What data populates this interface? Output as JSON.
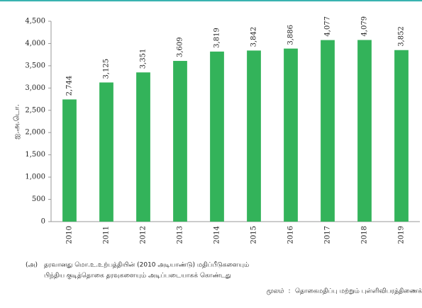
{
  "chart_data": {
    "type": "bar",
    "y_axis_label": "ஐ.அ.டொ.",
    "categories": [
      "2010",
      "2011",
      "2012",
      "2013",
      "2014",
      "2015",
      "2016",
      "2017",
      "2018",
      "2019"
    ],
    "values": [
      2744,
      3125,
      3351,
      3609,
      3819,
      3842,
      3886,
      4077,
      4079,
      3852
    ],
    "value_labels": [
      "2,744",
      "3,125",
      "3,351",
      "3,609",
      "3,819",
      "3,842",
      "3,886",
      "4,077",
      "4,079",
      "3,852"
    ],
    "color": "#33b35a",
    "ylim": [
      0,
      4500
    ],
    "yticks": [
      0,
      500,
      {
        "value": 1000,
        "label": "1,000"
      },
      {
        "value": 1500,
        "label": "1,500"
      },
      {
        "value": 2000,
        "label": "2,000"
      },
      {
        "value": 2500,
        "label": "2,500"
      },
      {
        "value": 3000,
        "label": "3,000"
      },
      {
        "value": 3500,
        "label": "3,500"
      },
      {
        "value": 4000,
        "label": "4,000"
      },
      {
        "value": 4500,
        "label": "4,500"
      }
    ],
    "grid": false,
    "note_marker": "(அ)",
    "note_lines": [
      "தரவானது மொ.உ.உற்பத்தியின் (2010 அடியாண்டு) மதிப்பீடுகளையும்",
      "பிந்திய குடித்தொகை தரவுகளையும் அடிப்படையாகக் கொண்டது"
    ],
    "source_label": "மூலம்",
    "source_separator": ":",
    "source_text": "தொகைமதிப்பு மற்றும் புள்ளிவிபரத்திணைக்களம்"
  }
}
